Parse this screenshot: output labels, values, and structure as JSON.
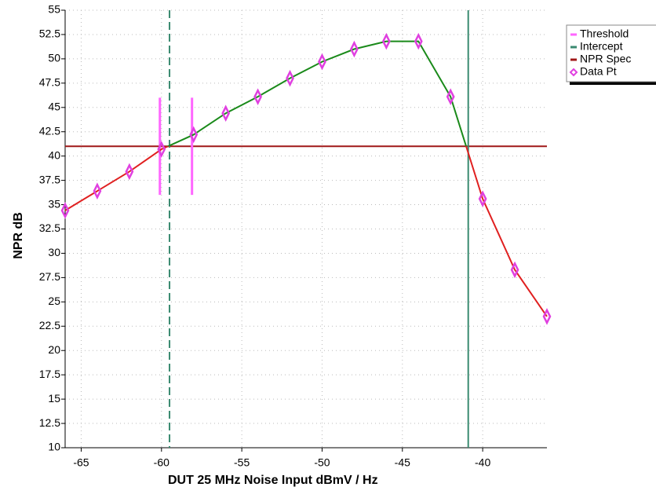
{
  "chart_data": {
    "type": "line",
    "x": [
      -66,
      -64,
      -62,
      -60,
      -58,
      -56,
      -54,
      -52,
      -50,
      -48,
      -46,
      -44,
      -42,
      -40,
      -38,
      -36
    ],
    "values": [
      34.4,
      36.4,
      38.4,
      40.7,
      42.2,
      44.4,
      46.1,
      48.0,
      49.7,
      51.0,
      51.8,
      51.8,
      46.1,
      35.6,
      28.3,
      23.5
    ],
    "xlim": [
      -66,
      -36
    ],
    "ylim": [
      10,
      55
    ],
    "xticks": [
      -65,
      -60,
      -55,
      -50,
      -45,
      -40
    ],
    "yticks": [
      10,
      12.5,
      15,
      17.5,
      20,
      22.5,
      25,
      27.5,
      30,
      32.5,
      35,
      37.5,
      40,
      42.5,
      45,
      47.5,
      50,
      52.5,
      55
    ],
    "xlabel": "DUT 25 MHz Noise Input dBmV / Hz",
    "ylabel": "NPR dB",
    "spec": 41,
    "intercepts": [
      -59.5,
      -40.9
    ],
    "thresholds": [
      -60.1,
      -58.1
    ],
    "threshold_range": [
      36,
      46
    ],
    "above_color": "#1a8a1a",
    "below_color": "#e02020",
    "grid": true,
    "legend": [
      {
        "name": "Threshold",
        "color": "#ff66ff"
      },
      {
        "name": "Intercept",
        "color": "#3a8a70"
      },
      {
        "name": "NPR Spec",
        "color": "#a01818"
      },
      {
        "name": "Data Pt",
        "color": "#e040e0"
      }
    ]
  }
}
